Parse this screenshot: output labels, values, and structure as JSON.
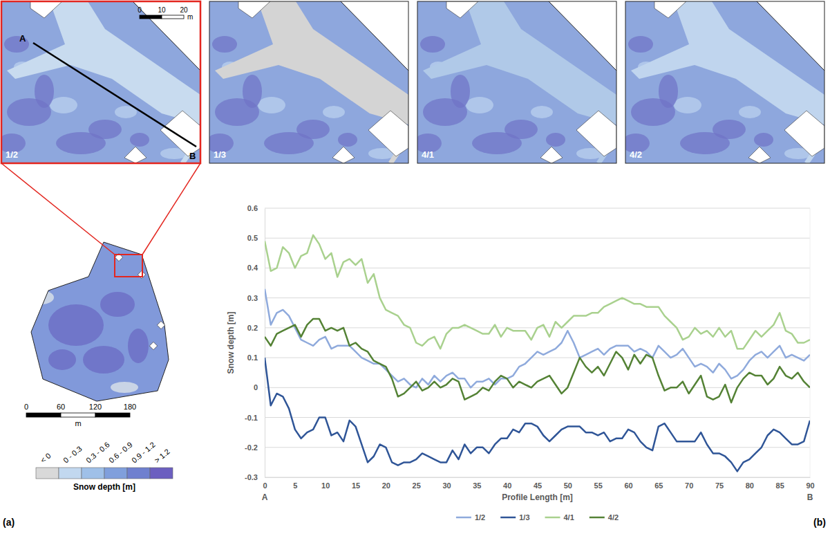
{
  "panel_labels": [
    "(a)",
    "(b)"
  ],
  "maps": {
    "tiles": [
      {
        "label": "1/2"
      },
      {
        "label": "1/3"
      },
      {
        "label": "4/1"
      },
      {
        "label": "4/2"
      }
    ],
    "profile": {
      "start": "A",
      "end": "B"
    },
    "tile_scale": {
      "ticks": [
        0,
        10,
        20
      ],
      "unit": "m"
    },
    "overview_scale": {
      "ticks": [
        0,
        60,
        120,
        180
      ],
      "unit": "m"
    },
    "colorbar": {
      "title": "Snow depth [m]",
      "classes": [
        {
          "label": "< 0",
          "color": "#d9d9d9"
        },
        {
          "label": "0 - 0.3",
          "color": "#c2d8ef"
        },
        {
          "label": "0.3 - 0.6",
          "color": "#9fc0e8"
        },
        {
          "label": "0.6 - 0.9",
          "color": "#809fdc"
        },
        {
          "label": "0.9 - 1.2",
          "color": "#6f80cf"
        },
        {
          "label": "> 1.2",
          "color": "#6c5fc0"
        }
      ]
    }
  },
  "chart_data": {
    "type": "line",
    "x_label": "Profile Length [m]",
    "y_label": "Snow depth [m]",
    "annotations": [
      "A",
      "B"
    ],
    "x": [
      0,
      1,
      2,
      3,
      4,
      5,
      6,
      7,
      8,
      9,
      10,
      11,
      12,
      13,
      14,
      15,
      16,
      17,
      18,
      19,
      20,
      21,
      22,
      23,
      24,
      25,
      26,
      27,
      28,
      29,
      30,
      31,
      32,
      33,
      34,
      35,
      36,
      37,
      38,
      39,
      40,
      41,
      42,
      43,
      44,
      45,
      46,
      47,
      48,
      49,
      50,
      51,
      52,
      53,
      54,
      55,
      56,
      57,
      58,
      59,
      60,
      61,
      62,
      63,
      64,
      65,
      66,
      67,
      68,
      69,
      70,
      71,
      72,
      73,
      74,
      75,
      76,
      77,
      78,
      79,
      80,
      81,
      82,
      83,
      84,
      85,
      86,
      87,
      88,
      89,
      90
    ],
    "xlim": [
      0,
      90
    ],
    "xticks": [
      0,
      5,
      10,
      15,
      20,
      25,
      30,
      35,
      40,
      45,
      50,
      55,
      60,
      65,
      70,
      75,
      80,
      85,
      90
    ],
    "ylim": [
      -0.3,
      0.6
    ],
    "yticks": [
      -0.3,
      -0.2,
      -0.1,
      0,
      0.1,
      0.2,
      0.3,
      0.4,
      0.5,
      0.6
    ],
    "grid": true,
    "legend": "bottom",
    "series": [
      {
        "name": "1/2",
        "color": "#8faadc",
        "values": [
          0.33,
          0.21,
          0.25,
          0.26,
          0.24,
          0.2,
          0.16,
          0.15,
          0.14,
          0.16,
          0.17,
          0.13,
          0.14,
          0.14,
          0.14,
          0.12,
          0.1,
          0.09,
          0.08,
          0.08,
          0.06,
          0.04,
          0.02,
          0.03,
          0.01,
          0.0,
          0.03,
          0.01,
          0.04,
          0.02,
          0.04,
          0.05,
          0.03,
          0.03,
          0.0,
          0.02,
          0.02,
          0.03,
          0.01,
          0.03,
          0.03,
          0.04,
          0.07,
          0.08,
          0.1,
          0.12,
          0.11,
          0.12,
          0.13,
          0.15,
          0.19,
          0.15,
          0.1,
          0.11,
          0.12,
          0.13,
          0.11,
          0.13,
          0.14,
          0.14,
          0.14,
          0.12,
          0.13,
          0.12,
          0.1,
          0.14,
          0.12,
          0.1,
          0.11,
          0.13,
          0.1,
          0.07,
          0.08,
          0.07,
          0.05,
          0.08,
          0.06,
          0.03,
          0.04,
          0.06,
          0.09,
          0.11,
          0.12,
          0.1,
          0.12,
          0.14,
          0.1,
          0.11,
          0.1,
          0.09,
          0.11
        ]
      },
      {
        "name": "1/3",
        "color": "#2f5597",
        "values": [
          0.1,
          -0.06,
          -0.02,
          -0.03,
          -0.07,
          -0.14,
          -0.17,
          -0.15,
          -0.14,
          -0.1,
          -0.1,
          -0.16,
          -0.15,
          -0.18,
          -0.11,
          -0.13,
          -0.19,
          -0.25,
          -0.23,
          -0.19,
          -0.2,
          -0.25,
          -0.26,
          -0.25,
          -0.25,
          -0.24,
          -0.22,
          -0.23,
          -0.24,
          -0.25,
          -0.25,
          -0.21,
          -0.24,
          -0.19,
          -0.22,
          -0.2,
          -0.2,
          -0.22,
          -0.19,
          -0.17,
          -0.17,
          -0.14,
          -0.15,
          -0.12,
          -0.12,
          -0.13,
          -0.16,
          -0.18,
          -0.16,
          -0.14,
          -0.13,
          -0.13,
          -0.13,
          -0.15,
          -0.15,
          -0.16,
          -0.15,
          -0.18,
          -0.17,
          -0.17,
          -0.14,
          -0.15,
          -0.18,
          -0.2,
          -0.21,
          -0.13,
          -0.12,
          -0.15,
          -0.18,
          -0.18,
          -0.18,
          -0.18,
          -0.15,
          -0.19,
          -0.22,
          -0.22,
          -0.23,
          -0.25,
          -0.28,
          -0.25,
          -0.24,
          -0.22,
          -0.2,
          -0.16,
          -0.14,
          -0.15,
          -0.17,
          -0.19,
          -0.19,
          -0.18,
          -0.11
        ]
      },
      {
        "name": "4/1",
        "color": "#a9d18e",
        "values": [
          0.49,
          0.39,
          0.4,
          0.47,
          0.45,
          0.4,
          0.44,
          0.45,
          0.51,
          0.48,
          0.43,
          0.45,
          0.37,
          0.42,
          0.43,
          0.41,
          0.43,
          0.35,
          0.38,
          0.3,
          0.26,
          0.25,
          0.24,
          0.21,
          0.2,
          0.15,
          0.14,
          0.16,
          0.17,
          0.13,
          0.18,
          0.2,
          0.2,
          0.21,
          0.2,
          0.19,
          0.18,
          0.18,
          0.21,
          0.17,
          0.2,
          0.19,
          0.19,
          0.19,
          0.16,
          0.2,
          0.21,
          0.17,
          0.22,
          0.2,
          0.22,
          0.24,
          0.24,
          0.24,
          0.25,
          0.25,
          0.27,
          0.28,
          0.29,
          0.3,
          0.29,
          0.28,
          0.28,
          0.27,
          0.27,
          0.27,
          0.24,
          0.22,
          0.2,
          0.16,
          0.17,
          0.2,
          0.18,
          0.19,
          0.17,
          0.2,
          0.17,
          0.19,
          0.13,
          0.13,
          0.16,
          0.19,
          0.17,
          0.19,
          0.21,
          0.25,
          0.19,
          0.18,
          0.15,
          0.15,
          0.16
        ]
      },
      {
        "name": "4/2",
        "color": "#548235",
        "values": [
          0.17,
          0.14,
          0.18,
          0.19,
          0.2,
          0.21,
          0.17,
          0.21,
          0.23,
          0.23,
          0.19,
          0.2,
          0.19,
          0.2,
          0.14,
          0.15,
          0.13,
          0.12,
          0.09,
          0.08,
          0.07,
          0.03,
          -0.03,
          -0.02,
          0.0,
          0.02,
          -0.01,
          0.0,
          0.02,
          0.0,
          0.01,
          0.03,
          0.02,
          -0.04,
          -0.03,
          -0.02,
          0.0,
          -0.01,
          0.02,
          0.04,
          0.03,
          0.0,
          0.02,
          0.01,
          0.0,
          0.02,
          0.03,
          0.04,
          0.01,
          -0.02,
          0.0,
          0.05,
          0.1,
          0.07,
          0.05,
          0.07,
          0.04,
          0.08,
          0.12,
          0.1,
          0.06,
          0.11,
          0.08,
          0.11,
          0.1,
          0.04,
          -0.01,
          0.0,
          0.0,
          0.02,
          -0.02,
          0.01,
          0.04,
          -0.03,
          -0.04,
          -0.03,
          0.01,
          -0.05,
          0.0,
          0.03,
          0.05,
          0.04,
          0.04,
          0.01,
          0.03,
          0.07,
          0.04,
          0.03,
          0.05,
          0.02,
          0.0
        ]
      }
    ]
  }
}
